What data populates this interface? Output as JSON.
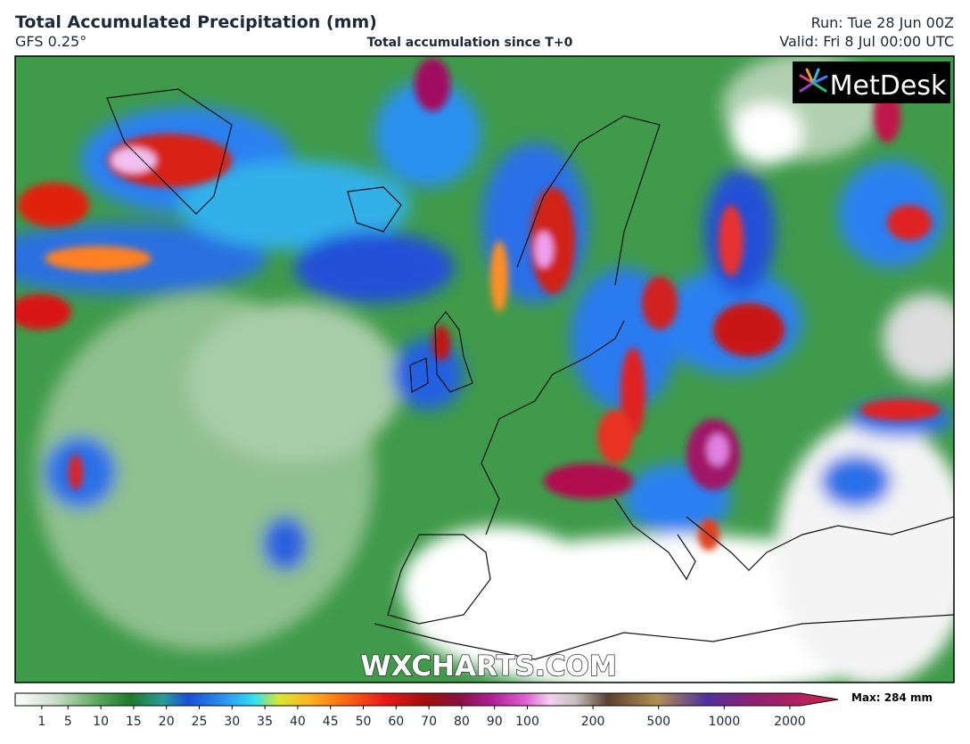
{
  "header": {
    "title": "Total Accumulated Precipitation (mm)",
    "model": "GFS 0.25°",
    "subtitle": "Total accumulation since T+0",
    "run": "Run: Tue 28 Jun 00Z",
    "valid": "Valid: Fri 8 Jul 00:00 UTC"
  },
  "map": {
    "logo": "MetDesk",
    "watermark": "WXCHARTS.COM"
  },
  "legend": {
    "ticks": [
      1,
      5,
      10,
      15,
      20,
      25,
      30,
      35,
      40,
      45,
      50,
      60,
      70,
      80,
      90,
      100,
      200,
      500,
      1000,
      2000
    ],
    "max_label": "Max: 284 mm"
  }
}
